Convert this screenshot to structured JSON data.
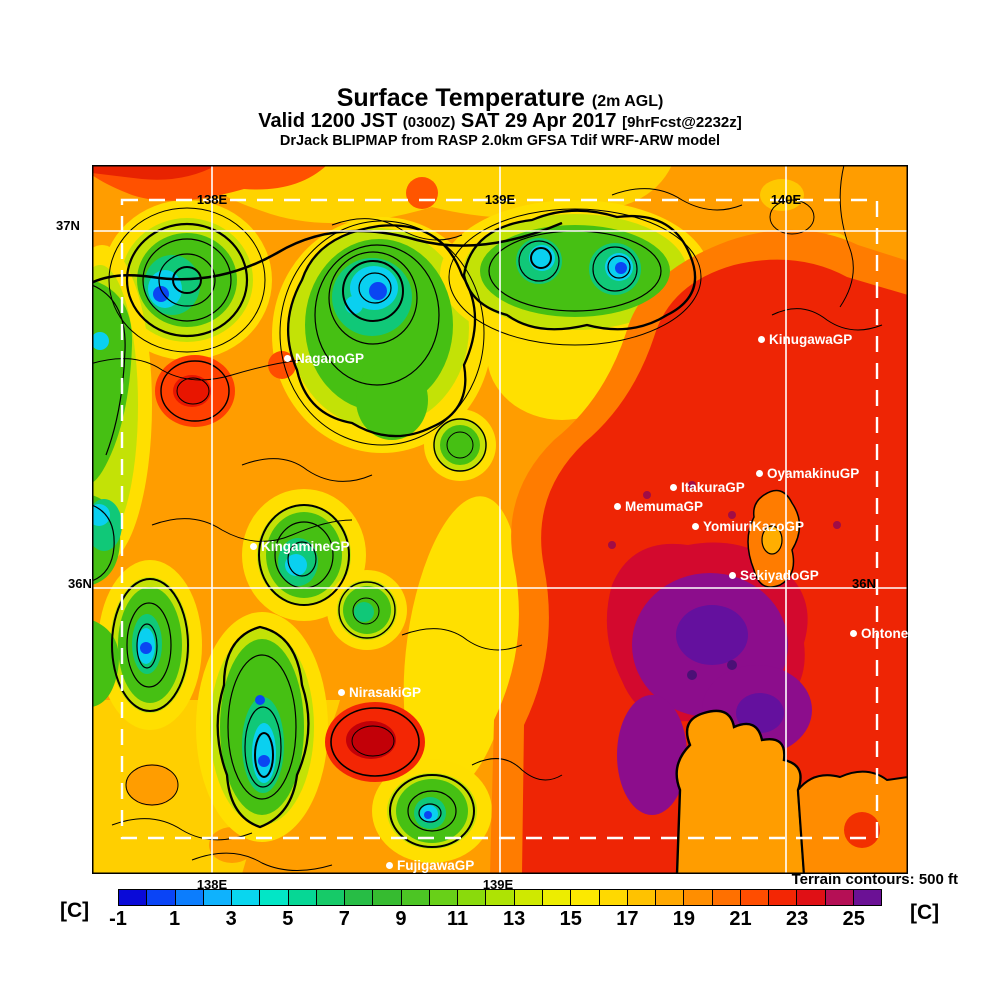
{
  "header": {
    "title": "Surface Temperature",
    "title_suffix": "(2m AGL)",
    "valid_prefix": "Valid 1200 JST",
    "valid_zulu": "(0300Z)",
    "valid_date": "SAT 29 Apr 2017",
    "valid_fcst": "[9hrFcst@2232z]",
    "model_line": "DrJack BLIPMAP from RASP 2.0km GFSA Tdif WRF-ARW model"
  },
  "map": {
    "grid": {
      "lat_37_left": "37N",
      "lat_36_left": "36N",
      "lat_36_right": "36N",
      "lon_138_top": "138E",
      "lon_139_top": "139E",
      "lon_140_top": "140E",
      "lon_138_bottom": "138E",
      "lon_139_bottom": "139E"
    },
    "stations": [
      {
        "label": "NaganoGP"
      },
      {
        "label": "KinugawaGP"
      },
      {
        "label": "OyamakinuGP"
      },
      {
        "label": "ItakuraGP"
      },
      {
        "label": "MemumaGP"
      },
      {
        "label": "YomiuriKazoGP"
      },
      {
        "label": "SekiyadoGP"
      },
      {
        "label": "Ohtone"
      },
      {
        "label": "KingamineGP"
      },
      {
        "label": "NirasakiGP"
      },
      {
        "label": "FujigawaGP"
      }
    ],
    "terrain_note": "Terrain contours: 500 ft"
  },
  "colorbar": {
    "unit_left": "[C]",
    "unit_right": "[C]",
    "ticks": [
      "-1",
      "1",
      "3",
      "5",
      "7",
      "9",
      "11",
      "13",
      "15",
      "17",
      "19",
      "21",
      "23",
      "25"
    ],
    "range_min": -1,
    "range_max": 26,
    "segment_colors": [
      "#0a0ad8",
      "#0a44f6",
      "#0c7dfd",
      "#0fb2fd",
      "#09d6ef",
      "#02e6c6",
      "#06d795",
      "#16ca68",
      "#27bd45",
      "#36bb30",
      "#4cc524",
      "#68d018",
      "#8ada0c",
      "#aee304",
      "#cfe900",
      "#eded00",
      "#fce900",
      "#ffd900",
      "#ffc200",
      "#ffa800",
      "#ff8e00",
      "#ff7000",
      "#ff4d00",
      "#f32604",
      "#e01015",
      "#b50f55",
      "#6b1195"
    ]
  }
}
